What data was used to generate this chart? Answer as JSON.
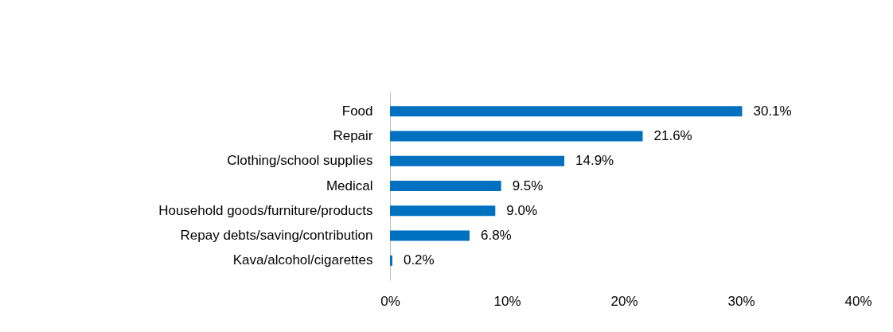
{
  "chart_data": {
    "type": "bar",
    "orientation": "horizontal",
    "categories": [
      "Food",
      "Repair",
      "Clothing/school supplies",
      "Medical",
      "Household goods/furniture/products",
      "Repay debts/saving/contribution",
      "Kava/alcohol/cigarettes"
    ],
    "values": [
      30.1,
      21.6,
      14.9,
      9.5,
      9.0,
      6.8,
      0.2
    ],
    "value_labels": [
      "30.1%",
      "21.6%",
      "14.9%",
      "9.5%",
      "9.0%",
      "6.8%",
      "0.2%"
    ],
    "color": "#0070c0",
    "xlim": [
      0,
      40
    ],
    "xticks": [
      {
        "value": 0,
        "label": "0%"
      },
      {
        "value": 10,
        "label": "10%"
      },
      {
        "value": 20,
        "label": "20%"
      },
      {
        "value": 30,
        "label": "30%"
      },
      {
        "value": 40,
        "label": "40%"
      }
    ],
    "grid": false
  }
}
